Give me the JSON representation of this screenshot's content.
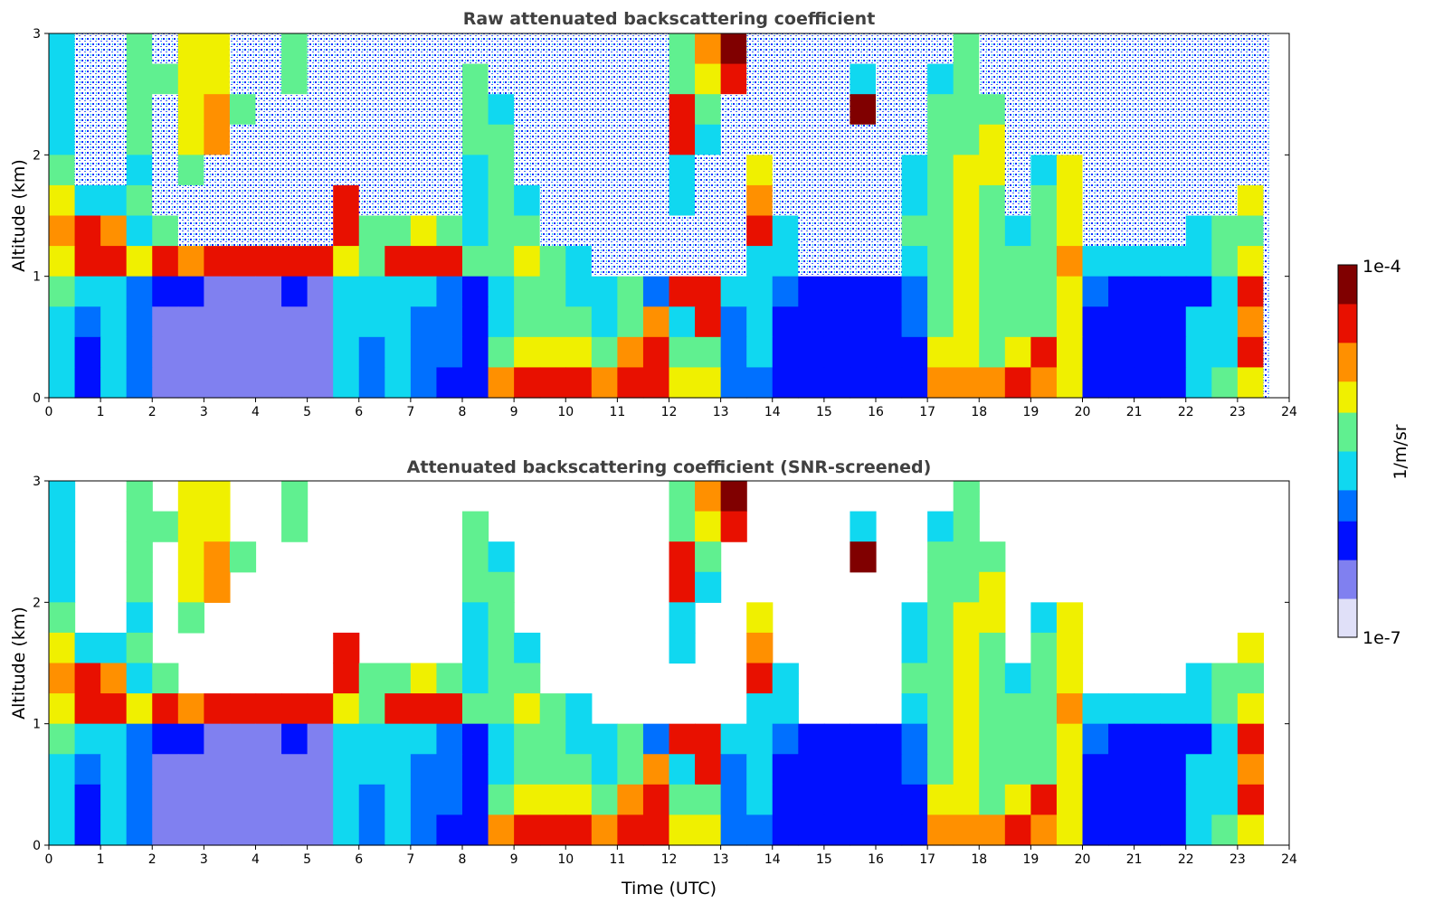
{
  "chart_data": [
    {
      "type": "heatmap",
      "title": "Raw attenuated backscattering coefficient",
      "xlabel": "",
      "ylabel": "Altitude (km)",
      "xlim": [
        0,
        24
      ],
      "ylim": [
        0,
        3
      ],
      "xticks": [
        0,
        1,
        2,
        3,
        4,
        5,
        6,
        7,
        8,
        9,
        10,
        11,
        12,
        13,
        14,
        15,
        16,
        17,
        18,
        19,
        20,
        21,
        22,
        23,
        24
      ],
      "yticks": [
        0,
        1,
        2,
        3
      ],
      "screened": false
    },
    {
      "type": "heatmap",
      "title": "Attenuated backscattering coefficient (SNR-screened)",
      "xlabel": "Time (UTC)",
      "ylabel": "Altitude (km)",
      "xlim": [
        0,
        24
      ],
      "ylim": [
        0,
        3
      ],
      "xticks": [
        0,
        1,
        2,
        3,
        4,
        5,
        6,
        7,
        8,
        9,
        10,
        11,
        12,
        13,
        14,
        15,
        16,
        17,
        18,
        19,
        20,
        21,
        22,
        23,
        24
      ],
      "yticks": [
        0,
        1,
        2,
        3
      ],
      "screened": true
    }
  ],
  "grid": {
    "time_step_h": 0.5,
    "altitude_step_km": 0.25,
    "data_end_h": 23.6,
    "level_scale": "0 = 1e-7 ... 9 = 1e-4 (log), null = below SNR / noise",
    "rows_top_to_bottom": [
      [
        4,
        null,
        null,
        5,
        null,
        6,
        6,
        null,
        null,
        5,
        null,
        null,
        null,
        null,
        null,
        null,
        null,
        null,
        null,
        null,
        null,
        null,
        null,
        null,
        5,
        7,
        9,
        null,
        null,
        null,
        null,
        null,
        null,
        null,
        null,
        5,
        null,
        null,
        null,
        null,
        null,
        null,
        null,
        null,
        null,
        null,
        null,
        null
      ],
      [
        4,
        null,
        null,
        5,
        5,
        6,
        6,
        null,
        null,
        5,
        null,
        null,
        null,
        null,
        null,
        null,
        5,
        null,
        null,
        null,
        null,
        null,
        null,
        null,
        5,
        6,
        8,
        null,
        null,
        null,
        null,
        4,
        null,
        null,
        4,
        5,
        null,
        null,
        null,
        null,
        null,
        null,
        null,
        null,
        null,
        null,
        null,
        null
      ],
      [
        4,
        null,
        null,
        5,
        null,
        6,
        7,
        5,
        null,
        null,
        null,
        null,
        null,
        null,
        null,
        null,
        5,
        4,
        null,
        null,
        null,
        null,
        null,
        null,
        8,
        5,
        null,
        null,
        null,
        null,
        null,
        9,
        null,
        null,
        5,
        5,
        5,
        null,
        null,
        null,
        null,
        null,
        null,
        null,
        null,
        null,
        null,
        null
      ],
      [
        4,
        null,
        null,
        5,
        null,
        6,
        7,
        null,
        null,
        null,
        null,
        null,
        null,
        null,
        null,
        null,
        5,
        5,
        null,
        null,
        null,
        null,
        null,
        null,
        8,
        4,
        null,
        null,
        null,
        null,
        null,
        null,
        null,
        null,
        5,
        5,
        6,
        null,
        null,
        null,
        null,
        null,
        null,
        null,
        null,
        null,
        null,
        null
      ],
      [
        5,
        null,
        null,
        4,
        null,
        5,
        null,
        null,
        null,
        null,
        null,
        null,
        null,
        null,
        null,
        null,
        4,
        5,
        null,
        null,
        null,
        null,
        null,
        null,
        4,
        null,
        null,
        6,
        null,
        null,
        null,
        null,
        null,
        4,
        5,
        6,
        6,
        null,
        4,
        6,
        null,
        null,
        null,
        null,
        null,
        null,
        null,
        null
      ],
      [
        6,
        4,
        4,
        5,
        null,
        null,
        null,
        null,
        null,
        null,
        null,
        8,
        null,
        null,
        null,
        null,
        4,
        5,
        4,
        null,
        null,
        null,
        null,
        null,
        4,
        null,
        null,
        7,
        null,
        null,
        null,
        null,
        null,
        4,
        5,
        6,
        5,
        null,
        5,
        6,
        null,
        null,
        null,
        null,
        null,
        null,
        6,
        null
      ],
      [
        7,
        8,
        7,
        4,
        5,
        null,
        null,
        null,
        null,
        null,
        null,
        8,
        5,
        5,
        6,
        5,
        4,
        5,
        5,
        null,
        null,
        null,
        null,
        null,
        null,
        null,
        null,
        8,
        4,
        null,
        null,
        null,
        null,
        5,
        5,
        6,
        5,
        4,
        5,
        6,
        null,
        null,
        null,
        null,
        4,
        5,
        5,
        null
      ],
      [
        6,
        8,
        8,
        6,
        8,
        7,
        8,
        8,
        8,
        8,
        8,
        6,
        5,
        8,
        8,
        8,
        5,
        5,
        6,
        5,
        4,
        null,
        null,
        null,
        null,
        null,
        null,
        4,
        4,
        null,
        null,
        null,
        null,
        4,
        5,
        6,
        5,
        5,
        5,
        7,
        4,
        4,
        4,
        4,
        4,
        5,
        6,
        null
      ],
      [
        5,
        4,
        4,
        3,
        2,
        2,
        1,
        1,
        1,
        2,
        1,
        4,
        4,
        4,
        4,
        3,
        2,
        4,
        5,
        5,
        4,
        4,
        5,
        3,
        8,
        8,
        4,
        4,
        3,
        2,
        2,
        2,
        2,
        3,
        5,
        6,
        5,
        5,
        5,
        6,
        3,
        2,
        2,
        2,
        2,
        4,
        8,
        null
      ],
      [
        4,
        3,
        4,
        3,
        1,
        1,
        1,
        1,
        1,
        1,
        1,
        4,
        4,
        4,
        3,
        3,
        2,
        4,
        5,
        5,
        5,
        4,
        5,
        7,
        4,
        8,
        3,
        4,
        2,
        2,
        2,
        2,
        2,
        3,
        5,
        6,
        5,
        5,
        5,
        6,
        2,
        2,
        2,
        2,
        4,
        4,
        7,
        null
      ],
      [
        4,
        2,
        4,
        3,
        1,
        1,
        1,
        1,
        1,
        1,
        1,
        4,
        3,
        4,
        3,
        3,
        2,
        5,
        6,
        6,
        6,
        5,
        7,
        8,
        5,
        5,
        3,
        4,
        2,
        2,
        2,
        2,
        2,
        2,
        6,
        6,
        5,
        6,
        8,
        6,
        2,
        2,
        2,
        2,
        4,
        4,
        8,
        null
      ],
      [
        4,
        2,
        4,
        3,
        1,
        1,
        1,
        1,
        1,
        1,
        1,
        4,
        3,
        4,
        3,
        2,
        2,
        7,
        8,
        8,
        8,
        7,
        8,
        8,
        6,
        6,
        3,
        3,
        2,
        2,
        2,
        2,
        2,
        2,
        7,
        7,
        7,
        8,
        7,
        6,
        2,
        2,
        2,
        2,
        4,
        5,
        6,
        null
      ]
    ]
  },
  "colorbar": {
    "label": "1/m/sr",
    "max_label": "1e-4",
    "min_label": "1e-7",
    "colors": [
      "#e0e0f8",
      "#8080f0",
      "#0010ff",
      "#0070ff",
      "#10d8f0",
      "#60f090",
      "#f0f000",
      "#ff9000",
      "#e81000",
      "#800000"
    ]
  }
}
